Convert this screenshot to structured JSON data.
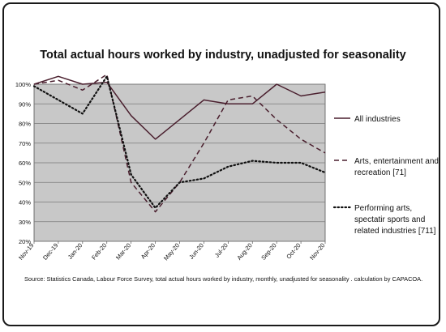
{
  "chart_data": {
    "type": "line",
    "title": "Total actual hours worked by industry, unadjusted for seasonality",
    "categories": [
      "Nov-19",
      "Dec-19",
      "Jan-20",
      "Feb-20",
      "Mar-20",
      "Apr-20",
      "May-20",
      "Jun-20",
      "Jul-20",
      "Aug-20",
      "Sep-20",
      "Oct-20",
      "Nov-20"
    ],
    "ylim": [
      20,
      100
    ],
    "yticks": [
      "20%",
      "30%",
      "40%",
      "50%",
      "60%",
      "70%",
      "80%",
      "90%",
      "100%"
    ],
    "grid": true,
    "legend_position": "right",
    "series": [
      {
        "name": "All industries",
        "style": "solid",
        "color": "#4a1f2e",
        "values": [
          100,
          104,
          100,
          101,
          84,
          72,
          82,
          92,
          90,
          90,
          100,
          94,
          96
        ]
      },
      {
        "name": "Arts, entertainment and recreation [71]",
        "style": "dashed",
        "color": "#4a1f2e",
        "values": [
          100,
          102,
          97,
          105,
          50,
          35,
          50,
          70,
          92,
          94,
          82,
          72,
          65
        ]
      },
      {
        "name": "Performing arts, spectatir sports and related industries [711]",
        "style": "dotted",
        "color": "#111111",
        "values": [
          99,
          92,
          85,
          104,
          54,
          37,
          50,
          52,
          58,
          61,
          60,
          60,
          55
        ]
      }
    ]
  },
  "source_note": "Source: Statistics Canada, Labour Force Survey, total actual hours worked by industry, monthly, unadjusted for seasonality . calculation by CAPACOA."
}
